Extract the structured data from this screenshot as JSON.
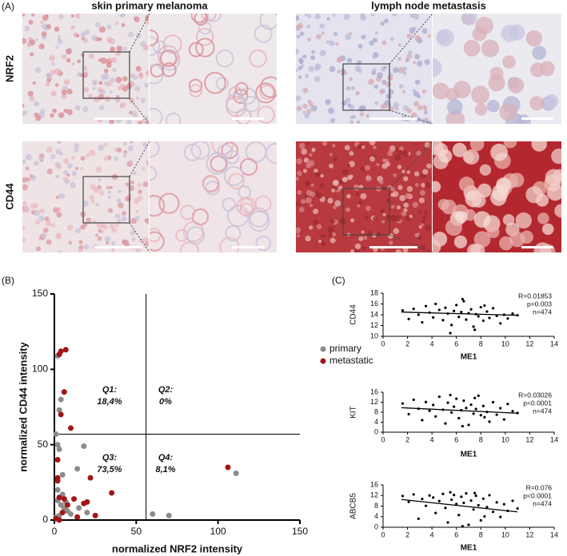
{
  "panel_labels": [
    "(A)",
    "(B)",
    "(C)"
  ],
  "panel_a": {
    "columns": [
      "skin primary melanoma",
      "lymph node metastasis"
    ],
    "rows": [
      "NRF2",
      "CD44"
    ]
  },
  "chart_data": [
    {
      "type": "scatter",
      "x_label": "normalized NRF2 intensity",
      "y_label": "normalized CD44 intensity",
      "xlim": [
        0,
        150
      ],
      "xticks": [
        0,
        50,
        100,
        150
      ],
      "ylim": [
        0,
        150
      ],
      "yticks": [
        0,
        50,
        100,
        150
      ],
      "legend": "upper right",
      "series": [
        {
          "name": "primary",
          "color": "#8c8c8c",
          "x": [
            2,
            4,
            3,
            2,
            3,
            18,
            14,
            5,
            3,
            2,
            4,
            6,
            8,
            10,
            3,
            1,
            15,
            20,
            60,
            70,
            111,
            1,
            2,
            5,
            7
          ],
          "values": [
            109,
            80,
            73,
            50,
            47,
            49,
            34,
            30,
            15,
            13,
            10,
            8,
            6,
            4,
            3,
            2,
            8,
            5,
            4,
            3,
            31,
            57,
            20,
            17,
            12
          ]
        },
        {
          "name": "metastatic",
          "color": "#a31515",
          "x": [
            4,
            7,
            6,
            10,
            3,
            4,
            2,
            2,
            22,
            3,
            6,
            20,
            18,
            12,
            35,
            5,
            3,
            1,
            106,
            2,
            8,
            14,
            25
          ],
          "values": [
            112,
            113,
            85,
            61,
            110,
            70,
            40,
            28,
            28,
            15,
            14,
            12,
            11,
            14,
            18,
            5,
            0,
            1,
            35,
            26,
            10,
            2,
            3
          ]
        }
      ],
      "quadrant_lines": {
        "x": 56,
        "y": 57
      },
      "quadrant_labels": [
        {
          "name": "Q1:",
          "value": "18,4%"
        },
        {
          "name": "Q2:",
          "value": "0%"
        },
        {
          "name": "Q3:",
          "value": "73,5%"
        },
        {
          "name": "Q4:",
          "value": "8,1%"
        }
      ]
    },
    {
      "type": "scatter",
      "x_label": "ME1",
      "y_label": "CD44",
      "xlim": [
        0,
        14
      ],
      "xticks": [
        0,
        2,
        4,
        6,
        8,
        10,
        12,
        14
      ],
      "ylim": [
        10,
        18
      ],
      "yticks": [
        10,
        12,
        14,
        16,
        18
      ],
      "x": [
        1.6,
        2.1,
        2.5,
        2.9,
        3.2,
        3.5,
        3.8,
        4.1,
        4.3,
        4.6,
        4.9,
        5.1,
        5.3,
        5.6,
        5.8,
        6.0,
        6.2,
        6.4,
        6.6,
        6.8,
        7.0,
        7.2,
        7.4,
        7.6,
        7.8,
        8.0,
        8.2,
        8.5,
        8.7,
        9.0,
        9.3,
        9.6,
        9.9,
        10.2,
        10.6,
        11.0,
        5.5,
        6.5,
        7.5,
        8.3
      ],
      "series": [
        {
          "color": "#000000",
          "values": [
            14.8,
            13.2,
            15.1,
            14.0,
            12.6,
            15.6,
            14.4,
            13.5,
            16.0,
            14.9,
            13.0,
            15.3,
            14.2,
            12.1,
            14.7,
            15.8,
            13.6,
            14.5,
            16.5,
            13.1,
            14.3,
            15.0,
            11.8,
            14.1,
            13.7,
            15.4,
            12.9,
            14.6,
            13.4,
            15.2,
            13.8,
            12.4,
            14.0,
            13.3,
            14.2,
            13.9,
            10.6,
            16.9,
            11.2,
            15.7
          ]
        }
      ],
      "trendline": {
        "x": [
          1.5,
          11
        ],
        "values": [
          14.5,
          13.9
        ]
      },
      "stats": [
        "R=0.01853",
        "p=0.003",
        "n=474"
      ]
    },
    {
      "type": "scatter",
      "x_label": "ME1",
      "y_label": "KIT",
      "xlim": [
        0,
        14
      ],
      "xticks": [
        0,
        2,
        4,
        6,
        8,
        10,
        12,
        14
      ],
      "ylim": [
        0,
        16
      ],
      "yticks": [
        0,
        4,
        8,
        12,
        16
      ],
      "x": [
        1.6,
        2.1,
        2.5,
        2.9,
        3.2,
        3.5,
        3.8,
        4.1,
        4.3,
        4.6,
        4.9,
        5.1,
        5.3,
        5.6,
        5.8,
        6.0,
        6.2,
        6.4,
        6.6,
        6.8,
        7.0,
        7.2,
        7.4,
        7.6,
        7.8,
        8.0,
        8.2,
        8.5,
        8.7,
        9.0,
        9.3,
        9.6,
        9.9,
        10.2,
        10.6,
        11.0,
        5.5,
        6.5,
        7.5,
        8.3
      ],
      "series": [
        {
          "color": "#000000",
          "values": [
            11.5,
            7.2,
            13.0,
            9.4,
            4.8,
            12.1,
            8.6,
            10.9,
            6.3,
            14.2,
            9.0,
            3.5,
            11.8,
            7.9,
            10.2,
            13.4,
            5.6,
            8.8,
            12.6,
            9.7,
            2.9,
            11.0,
            7.4,
            9.3,
            14.6,
            6.8,
            10.5,
            8.1,
            4.2,
            12.0,
            7.0,
            9.6,
            5.1,
            11.3,
            8.4,
            7.7,
            14.9,
            2.4,
            13.7,
            6.0
          ]
        }
      ],
      "trendline": {
        "x": [
          1.5,
          11
        ],
        "values": [
          9.8,
          7.6
        ]
      },
      "stats": [
        "R=0.03026",
        "p<0.0001",
        "n=474"
      ]
    },
    {
      "type": "scatter",
      "x_label": "ME1",
      "y_label": "ABCB5",
      "xlim": [
        0,
        14
      ],
      "xticks": [
        0,
        2,
        4,
        6,
        8,
        10,
        12,
        14
      ],
      "ylim": [
        0,
        16
      ],
      "yticks": [
        0,
        4,
        8,
        12,
        16
      ],
      "x": [
        1.6,
        2.1,
        2.5,
        2.9,
        3.2,
        3.5,
        3.8,
        4.1,
        4.3,
        4.6,
        4.9,
        5.1,
        5.3,
        5.6,
        5.8,
        6.0,
        6.2,
        6.4,
        6.6,
        6.8,
        7.0,
        7.2,
        7.4,
        7.6,
        7.8,
        8.0,
        8.2,
        8.5,
        8.7,
        9.0,
        9.3,
        9.6,
        9.9,
        10.2,
        10.6,
        11.0,
        5.5,
        6.5,
        7.5,
        8.3
      ],
      "series": [
        {
          "color": "#000000",
          "values": [
            11.8,
            9.6,
            12.4,
            3.2,
            10.7,
            8.1,
            12.0,
            11.2,
            5.4,
            9.9,
            12.6,
            7.3,
            1.8,
            10.4,
            12.2,
            8.8,
            4.6,
            11.5,
            9.2,
            12.8,
            0.9,
            10.1,
            6.7,
            11.9,
            8.3,
            2.6,
            10.8,
            7.6,
            12.1,
            5.8,
            9.4,
            3.9,
            8.7,
            6.2,
            10.0,
            7.1,
            13.2,
            0.4,
            12.9,
            4.1
          ]
        }
      ],
      "trendline": {
        "x": [
          1.5,
          11
        ],
        "values": [
          10.5,
          5.8
        ]
      },
      "stats": [
        "R=0.076",
        "p<0.0001",
        "n=474"
      ]
    }
  ]
}
